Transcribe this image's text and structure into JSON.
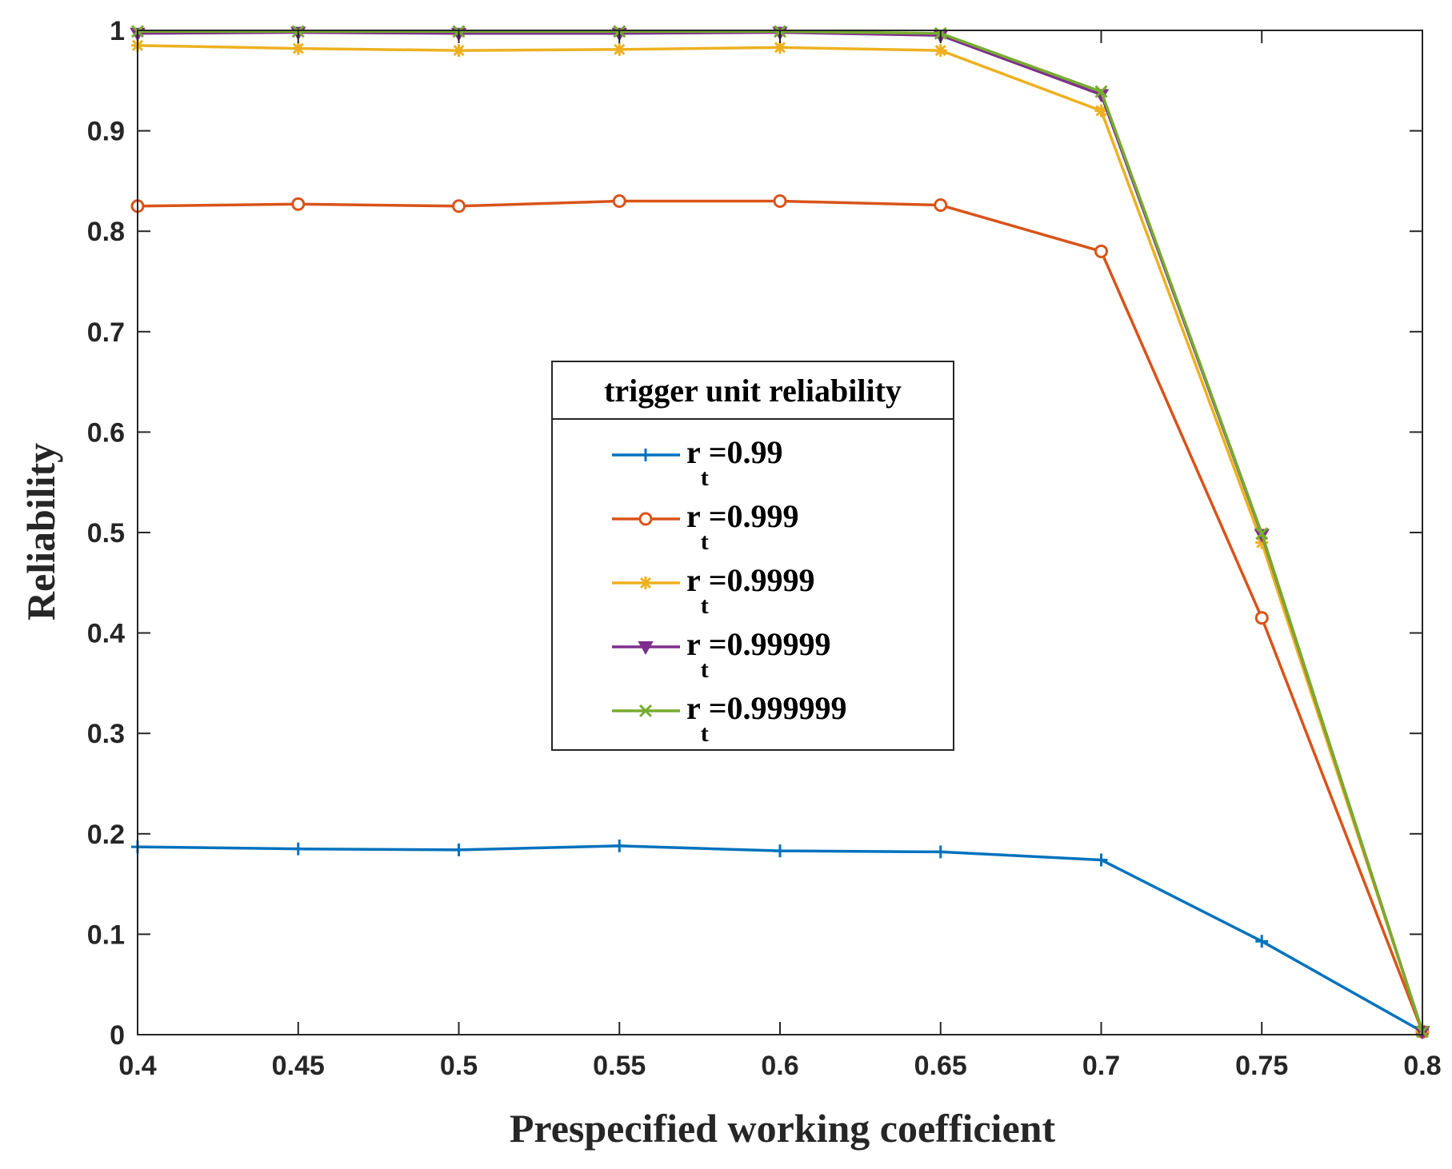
{
  "chart_data": {
    "type": "line",
    "title": "",
    "xlabel": "Prespecified working coefficient",
    "ylabel": "Reliability",
    "x": [
      0.4,
      0.45,
      0.5,
      0.55,
      0.6,
      0.65,
      0.7,
      0.75,
      0.8
    ],
    "x_tick_labels": [
      "0.4",
      "0.45",
      "0.5",
      "0.55",
      "0.6",
      "0.65",
      "0.7",
      "0.75",
      "0.8"
    ],
    "y_ticks": [
      0,
      0.1,
      0.2,
      0.3,
      0.4,
      0.5,
      0.6,
      0.7,
      0.8,
      0.9,
      1
    ],
    "y_tick_labels": [
      "0",
      "0.1",
      "0.2",
      "0.3",
      "0.4",
      "0.5",
      "0.6",
      "0.7",
      "0.8",
      "0.9",
      "1"
    ],
    "xlim": [
      0.4,
      0.8
    ],
    "ylim": [
      0,
      1
    ],
    "grid": false,
    "legend": {
      "title": "trigger unit reliability",
      "placement": "center",
      "entries": [
        {
          "prefix": "r",
          "sub": "t",
          "suffix": "=0.99"
        },
        {
          "prefix": "r",
          "sub": "t",
          "suffix": "=0.999"
        },
        {
          "prefix": "r",
          "sub": "t",
          "suffix": "=0.9999"
        },
        {
          "prefix": "r",
          "sub": "t",
          "suffix": "=0.99999"
        },
        {
          "prefix": "r",
          "sub": "t",
          "suffix": "=0.999999"
        }
      ]
    },
    "series": [
      {
        "name": "rt=0.99",
        "color": "#0072bd",
        "marker": "plus",
        "values": [
          0.187,
          0.185,
          0.184,
          0.188,
          0.183,
          0.182,
          0.174,
          0.093,
          0.003
        ]
      },
      {
        "name": "rt=0.999",
        "color": "#d95319",
        "marker": "circle",
        "values": [
          0.825,
          0.827,
          0.825,
          0.83,
          0.83,
          0.826,
          0.78,
          0.415,
          0.003
        ]
      },
      {
        "name": "rt=0.9999",
        "color": "#edb120",
        "marker": "asterisk",
        "values": [
          0.985,
          0.982,
          0.98,
          0.981,
          0.983,
          0.98,
          0.92,
          0.49,
          0.003
        ]
      },
      {
        "name": "rt=0.99999",
        "color": "#7e2f8e",
        "marker": "triangle-down",
        "values": [
          0.997,
          0.998,
          0.997,
          0.997,
          0.998,
          0.995,
          0.936,
          0.498,
          0.003
        ]
      },
      {
        "name": "rt=0.999999",
        "color": "#77ac30",
        "marker": "x",
        "values": [
          0.999,
          0.999,
          0.999,
          0.999,
          0.999,
          0.997,
          0.939,
          0.499,
          0.003
        ]
      }
    ]
  }
}
